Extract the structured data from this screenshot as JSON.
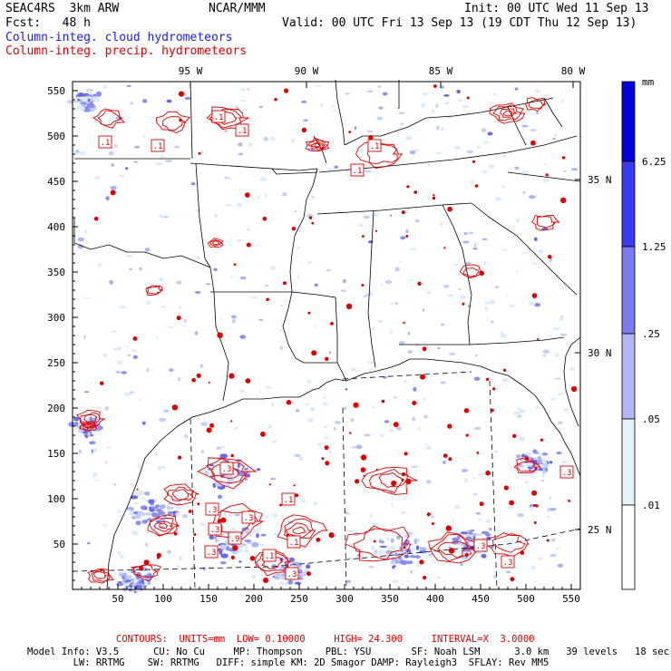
{
  "header": {
    "model": "SEAC4RS  3km ARW",
    "org": "NCAR/MMM",
    "init": "Init: 00 UTC Wed 11 Sep 13",
    "fcst": "Fcst:   48 h",
    "valid": "Valid: 00 UTC Fri 13 Sep 13 (19 CDT Thu 12 Sep 13)",
    "field1": "Column-integ. cloud hydrometeors",
    "field2": "Column-integ. precip. hydrometeors"
  },
  "map": {
    "lon_labels": [
      "95 W",
      "90 W",
      "85 W",
      "80 W"
    ],
    "lat_labels": [
      "35 N",
      "30 N",
      "25 N"
    ],
    "y_ticks": [
      "550",
      "500",
      "450",
      "400",
      "350",
      "300",
      "250",
      "200",
      "150",
      "100",
      "50"
    ],
    "x_ticks": [
      "50",
      "100",
      "150",
      "200",
      "250",
      "300",
      "350",
      "400",
      "450",
      "500",
      "550"
    ],
    "contour_labels": [
      ".1",
      ".1",
      ".1",
      ".1",
      ".1",
      ".1",
      ".3",
      ".3",
      ".1",
      ".3",
      ".3",
      ".3",
      ".9",
      ".1",
      ".3",
      ".1",
      ".3",
      ".3",
      ".3"
    ]
  },
  "colorbar": {
    "unit": "mm",
    "labels": [
      "6.25",
      "1.25",
      ".25",
      ".05",
      ".01"
    ],
    "colors": [
      "#0000d8",
      "#3a3af0",
      "#7a7af2",
      "#b4b4f6",
      "#e4f4fa",
      "#ffffff"
    ]
  },
  "footer": {
    "contours": "CONTOURS:  UNITS=mm  LOW= 0.10000     HIGH= 24.300     INTERVAL=X  3.0000",
    "info1": "Model Info: V3.5      CU: No Cu     MP: Thompson    PBL: YSU       SF: Noah LSM      3.0 km   39 levels   18 sec",
    "info2": "        LW: RRTMG    SW: RRTMG   DIFF: simple KM: 2D Smagor DAMP: Rayleigh3  SFLAY: Rev MM5"
  }
}
